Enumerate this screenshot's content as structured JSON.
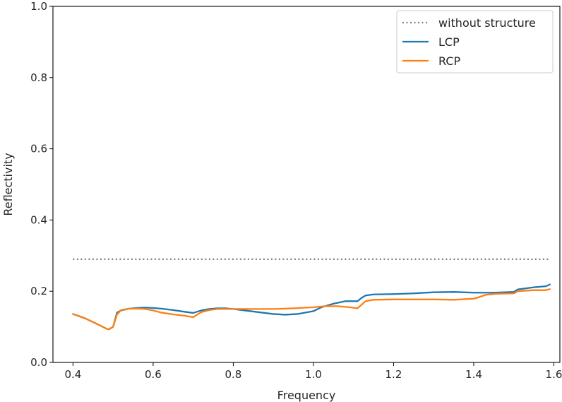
{
  "chart_data": {
    "type": "line",
    "xlabel": "Frequency",
    "ylabel": "Reflectivity",
    "xlim": [
      0.35,
      1.615
    ],
    "ylim": [
      0.0,
      1.0
    ],
    "xticks": [
      "0.4",
      "0.6",
      "0.8",
      "1.0",
      "1.2",
      "1.4",
      "1.6"
    ],
    "yticks": [
      "0.0",
      "0.2",
      "0.4",
      "0.6",
      "0.8",
      "1.0"
    ],
    "grid": false,
    "legend_position": "top-right",
    "colors": {
      "without_structure": "#7f7f7f",
      "LCP": "#1f77b4",
      "RCP": "#ff7f0e"
    },
    "series": [
      {
        "name": "without structure",
        "style": "dotted",
        "x": [
          0.4,
          1.59
        ],
        "y": [
          0.29,
          0.29
        ]
      },
      {
        "name": "LCP",
        "style": "solid",
        "x": [
          0.4,
          0.43,
          0.46,
          0.485,
          0.49,
          0.5,
          0.51,
          0.52,
          0.54,
          0.56,
          0.58,
          0.6,
          0.62,
          0.65,
          0.68,
          0.7,
          0.72,
          0.74,
          0.76,
          0.78,
          0.8,
          0.85,
          0.9,
          0.93,
          0.96,
          1.0,
          1.02,
          1.05,
          1.08,
          1.1,
          1.11,
          1.12,
          1.13,
          1.15,
          1.2,
          1.25,
          1.3,
          1.35,
          1.4,
          1.45,
          1.5,
          1.51,
          1.55,
          1.58,
          1.59
        ],
        "y": [
          0.136,
          0.124,
          0.108,
          0.094,
          0.093,
          0.1,
          0.14,
          0.146,
          0.151,
          0.153,
          0.154,
          0.153,
          0.151,
          0.147,
          0.142,
          0.139,
          0.146,
          0.15,
          0.152,
          0.152,
          0.15,
          0.143,
          0.136,
          0.134,
          0.136,
          0.144,
          0.155,
          0.165,
          0.172,
          0.172,
          0.172,
          0.181,
          0.188,
          0.191,
          0.192,
          0.194,
          0.197,
          0.198,
          0.196,
          0.196,
          0.198,
          0.205,
          0.211,
          0.214,
          0.219
        ]
      },
      {
        "name": "RCP",
        "style": "solid",
        "x": [
          0.4,
          0.43,
          0.46,
          0.485,
          0.49,
          0.5,
          0.51,
          0.52,
          0.54,
          0.56,
          0.58,
          0.6,
          0.62,
          0.65,
          0.68,
          0.7,
          0.72,
          0.74,
          0.76,
          0.78,
          0.8,
          0.85,
          0.9,
          0.95,
          1.0,
          1.03,
          1.06,
          1.09,
          1.11,
          1.12,
          1.13,
          1.15,
          1.2,
          1.25,
          1.3,
          1.35,
          1.4,
          1.41,
          1.43,
          1.46,
          1.5,
          1.51,
          1.55,
          1.58,
          1.59
        ],
        "y": [
          0.136,
          0.124,
          0.108,
          0.094,
          0.093,
          0.1,
          0.135,
          0.147,
          0.151,
          0.151,
          0.15,
          0.146,
          0.14,
          0.135,
          0.131,
          0.127,
          0.141,
          0.147,
          0.15,
          0.15,
          0.15,
          0.15,
          0.15,
          0.152,
          0.155,
          0.158,
          0.158,
          0.155,
          0.152,
          0.162,
          0.172,
          0.176,
          0.177,
          0.177,
          0.177,
          0.176,
          0.179,
          0.182,
          0.19,
          0.193,
          0.194,
          0.2,
          0.203,
          0.203,
          0.206
        ]
      }
    ]
  }
}
